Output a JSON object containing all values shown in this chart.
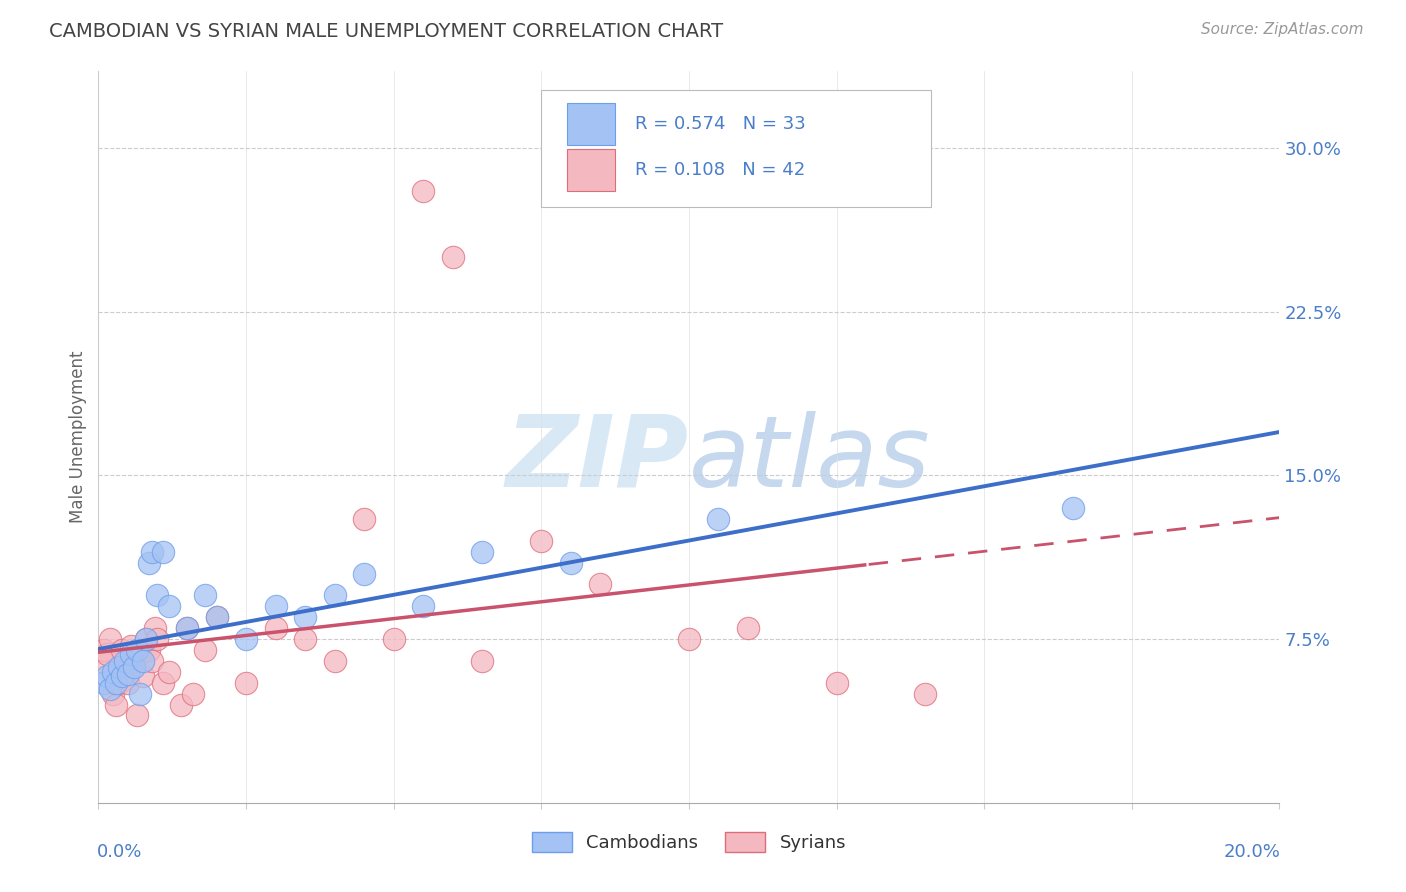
{
  "title": "CAMBODIAN VS SYRIAN MALE UNEMPLOYMENT CORRELATION CHART",
  "source": "Source: ZipAtlas.com",
  "ylabel": "Male Unemployment",
  "xlim": [
    0.0,
    20.0
  ],
  "ylim": [
    0.0,
    33.5
  ],
  "yticks": [
    7.5,
    15.0,
    22.5,
    30.0
  ],
  "ytick_labels": [
    "7.5%",
    "15.0%",
    "22.5%",
    "30.0%"
  ],
  "xticks": [
    0.0,
    2.5,
    5.0,
    7.5,
    10.0,
    12.5,
    15.0,
    17.5,
    20.0
  ],
  "cambodian_R": 0.574,
  "cambodian_N": 33,
  "syrian_R": 0.108,
  "syrian_N": 42,
  "blue_color": "#a4c2f4",
  "pink_color": "#f4b8c1",
  "blue_edge_color": "#6d9eeb",
  "pink_edge_color": "#e06c7a",
  "blue_line_color": "#3d6ec9",
  "pink_line_color": "#c9536c",
  "text_blue": "#4a7ec9",
  "background_color": "#ffffff",
  "watermark_color": "#d8e8f5",
  "cambodian_x": [
    0.1,
    0.15,
    0.2,
    0.25,
    0.3,
    0.35,
    0.4,
    0.45,
    0.5,
    0.55,
    0.6,
    0.65,
    0.7,
    0.75,
    0.8,
    0.85,
    0.9,
    1.0,
    1.1,
    1.2,
    1.5,
    1.8,
    2.0,
    2.5,
    3.0,
    3.5,
    4.0,
    4.5,
    5.5,
    6.5,
    8.0,
    10.5,
    16.5
  ],
  "cambodian_y": [
    5.5,
    5.8,
    5.2,
    6.0,
    5.5,
    6.2,
    5.8,
    6.5,
    5.9,
    6.8,
    6.2,
    7.0,
    5.0,
    6.5,
    7.5,
    11.0,
    11.5,
    9.5,
    11.5,
    9.0,
    8.0,
    9.5,
    8.5,
    7.5,
    9.0,
    8.5,
    9.5,
    10.5,
    9.0,
    11.5,
    11.0,
    13.0,
    13.5
  ],
  "syrian_x": [
    0.05,
    0.1,
    0.15,
    0.2,
    0.25,
    0.3,
    0.35,
    0.4,
    0.45,
    0.5,
    0.55,
    0.6,
    0.65,
    0.7,
    0.75,
    0.8,
    0.85,
    0.9,
    0.95,
    1.0,
    1.1,
    1.2,
    1.4,
    1.5,
    1.6,
    1.8,
    2.0,
    2.5,
    3.0,
    3.5,
    4.0,
    4.5,
    5.0,
    5.5,
    6.0,
    6.5,
    7.5,
    8.5,
    10.0,
    11.0,
    12.5,
    14.0
  ],
  "syrian_y": [
    6.5,
    7.0,
    6.8,
    7.5,
    5.0,
    4.5,
    5.5,
    7.0,
    6.0,
    5.5,
    7.2,
    6.5,
    4.0,
    6.8,
    5.8,
    7.5,
    7.0,
    6.5,
    8.0,
    7.5,
    5.5,
    6.0,
    4.5,
    8.0,
    5.0,
    7.0,
    8.5,
    5.5,
    8.0,
    7.5,
    6.5,
    13.0,
    7.5,
    28.0,
    25.0,
    6.5,
    12.0,
    10.0,
    7.5,
    8.0,
    5.5,
    5.0
  ]
}
